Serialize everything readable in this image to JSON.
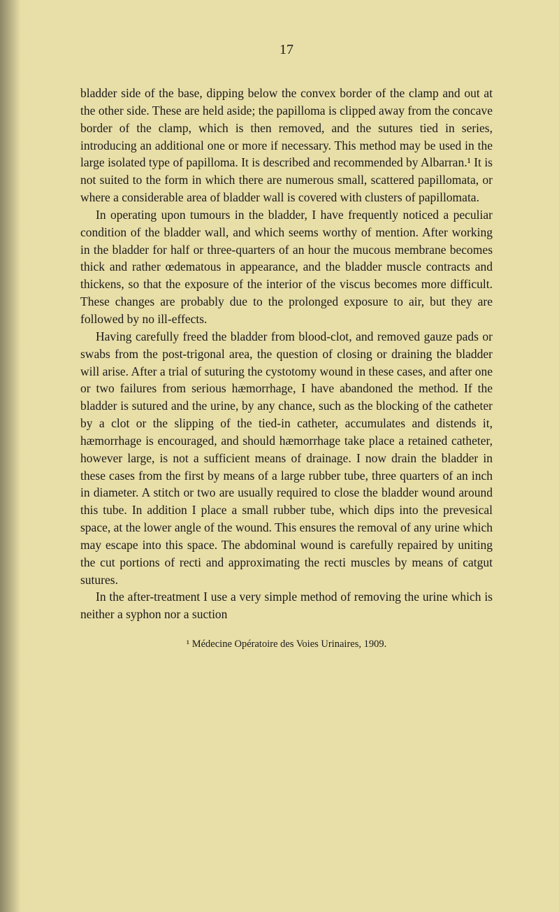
{
  "page": {
    "number": "17",
    "background_color": "#e8dea8",
    "text_color": "#1a1a1a",
    "body_fontsize": 17.5,
    "line_height": 1.42,
    "footnote_fontsize": 14.5,
    "page_number_fontsize": 20,
    "paragraphs": [
      "bladder side of the base, dipping below the convex border of the clamp and out at the other side. These are held aside; the papilloma is clipped away from the concave border of the clamp, which is then removed, and the sutures tied in series, introducing an additional one or more if necessary. This method may be used in the large isolated type of papilloma. It is described and recommended by Albarran.¹ It is not suited to the form in which there are numerous small, scattered papillomata, or where a considerable area of bladder wall is covered with clusters of papillomata.",
      "In operating upon tumours in the bladder, I have frequently noticed a peculiar condition of the bladder wall, and which seems worthy of mention. After working in the bladder for half or three-quarters of an hour the mucous membrane becomes thick and rather œdematous in appearance, and the bladder muscle contracts and thickens, so that the exposure of the interior of the viscus becomes more difficult. These changes are probably due to the prolonged exposure to air, but they are followed by no ill-effects.",
      "Having carefully freed the bladder from blood-clot, and removed gauze pads or swabs from the post-trigonal area, the question of closing or draining the bladder will arise. After a trial of suturing the cystotomy wound in these cases, and after one or two failures from serious hæmorrhage, I have abandoned the method. If the bladder is sutured and the urine, by any chance, such as the blocking of the catheter by a clot or the slipping of the tied-in catheter, accumulates and distends it, hæmorrhage is encouraged, and should hæmorrhage take place a retained catheter, however large, is not a sufficient means of drainage. I now drain the bladder in these cases from the first by means of a large rubber tube, three quarters of an inch in diameter. A stitch or two are usually required to close the bladder wound around this tube. In addition I place a small rubber tube, which dips into the prevesical space, at the lower angle of the wound. This ensures the removal of any urine which may escape into this space. The abdominal wound is carefully repaired by uniting the cut portions of recti and approximating the recti muscles by means of catgut sutures.",
      "In the after-treatment I use a very simple method of removing the urine which is neither a syphon nor a suction"
    ],
    "footnote": "¹ Médecine Opératoire des Voies Urinaires, 1909."
  }
}
